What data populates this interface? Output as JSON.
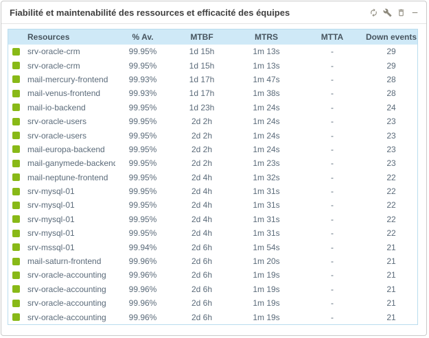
{
  "widget": {
    "title": "Fiabilité et maintenabilité des ressources et efficacité des équipes",
    "toolbar": {
      "icons": [
        "refresh-icon",
        "wrench-icon",
        "trash-icon",
        "minimize-icon"
      ]
    }
  },
  "table": {
    "columns": [
      "Resources",
      "% Av.",
      "MTBF",
      "MTRS",
      "MTTA",
      "Down events"
    ],
    "rows": [
      {
        "status": "ok",
        "name": "srv-oracle-crm",
        "av": "99.95%",
        "mtbf": "1d 15h",
        "mtrs": "1m 13s",
        "mtta": "-",
        "down": "29"
      },
      {
        "status": "ok",
        "name": "srv-oracle-crm",
        "av": "99.95%",
        "mtbf": "1d 15h",
        "mtrs": "1m 13s",
        "mtta": "-",
        "down": "29"
      },
      {
        "status": "ok",
        "name": "mail-mercury-frontend",
        "av": "99.93%",
        "mtbf": "1d 17h",
        "mtrs": "1m 47s",
        "mtta": "-",
        "down": "28"
      },
      {
        "status": "ok",
        "name": "mail-venus-frontend",
        "av": "99.93%",
        "mtbf": "1d 17h",
        "mtrs": "1m 38s",
        "mtta": "-",
        "down": "28"
      },
      {
        "status": "ok",
        "name": "mail-io-backend",
        "av": "99.95%",
        "mtbf": "1d 23h",
        "mtrs": "1m 24s",
        "mtta": "-",
        "down": "24"
      },
      {
        "status": "ok",
        "name": "srv-oracle-users",
        "av": "99.95%",
        "mtbf": "2d 2h",
        "mtrs": "1m 24s",
        "mtta": "-",
        "down": "23"
      },
      {
        "status": "ok",
        "name": "srv-oracle-users",
        "av": "99.95%",
        "mtbf": "2d 2h",
        "mtrs": "1m 24s",
        "mtta": "-",
        "down": "23"
      },
      {
        "status": "ok",
        "name": "mail-europa-backend",
        "av": "99.95%",
        "mtbf": "2d 2h",
        "mtrs": "1m 24s",
        "mtta": "-",
        "down": "23"
      },
      {
        "status": "ok",
        "name": "mail-ganymede-backend",
        "av": "99.95%",
        "mtbf": "2d 2h",
        "mtrs": "1m 23s",
        "mtta": "-",
        "down": "23"
      },
      {
        "status": "ok",
        "name": "mail-neptune-frontend",
        "av": "99.95%",
        "mtbf": "2d 4h",
        "mtrs": "1m 32s",
        "mtta": "-",
        "down": "22"
      },
      {
        "status": "ok",
        "name": "srv-mysql-01",
        "av": "99.95%",
        "mtbf": "2d 4h",
        "mtrs": "1m 31s",
        "mtta": "-",
        "down": "22"
      },
      {
        "status": "ok",
        "name": "srv-mysql-01",
        "av": "99.95%",
        "mtbf": "2d 4h",
        "mtrs": "1m 31s",
        "mtta": "-",
        "down": "22"
      },
      {
        "status": "ok",
        "name": "srv-mysql-01",
        "av": "99.95%",
        "mtbf": "2d 4h",
        "mtrs": "1m 31s",
        "mtta": "-",
        "down": "22"
      },
      {
        "status": "ok",
        "name": "srv-mysql-01",
        "av": "99.95%",
        "mtbf": "2d 4h",
        "mtrs": "1m 31s",
        "mtta": "-",
        "down": "22"
      },
      {
        "status": "ok",
        "name": "srv-mssql-01",
        "av": "99.94%",
        "mtbf": "2d 6h",
        "mtrs": "1m 54s",
        "mtta": "-",
        "down": "21"
      },
      {
        "status": "ok",
        "name": "mail-saturn-frontend",
        "av": "99.96%",
        "mtbf": "2d 6h",
        "mtrs": "1m 20s",
        "mtta": "-",
        "down": "21"
      },
      {
        "status": "ok",
        "name": "srv-oracle-accounting",
        "av": "99.96%",
        "mtbf": "2d 6h",
        "mtrs": "1m 19s",
        "mtta": "-",
        "down": "21"
      },
      {
        "status": "ok",
        "name": "srv-oracle-accounting",
        "av": "99.96%",
        "mtbf": "2d 6h",
        "mtrs": "1m 19s",
        "mtta": "-",
        "down": "21"
      },
      {
        "status": "ok",
        "name": "srv-oracle-accounting",
        "av": "99.96%",
        "mtbf": "2d 6h",
        "mtrs": "1m 19s",
        "mtta": "-",
        "down": "21"
      },
      {
        "status": "ok",
        "name": "srv-oracle-accounting",
        "av": "99.96%",
        "mtbf": "2d 6h",
        "mtrs": "1m 19s",
        "mtta": "-",
        "down": "21"
      }
    ]
  },
  "colors": {
    "status_ok": "#88b917",
    "header_bg": "#cfe9f7",
    "table_border": "#b9dcee",
    "icon_color": "#8d897c"
  }
}
